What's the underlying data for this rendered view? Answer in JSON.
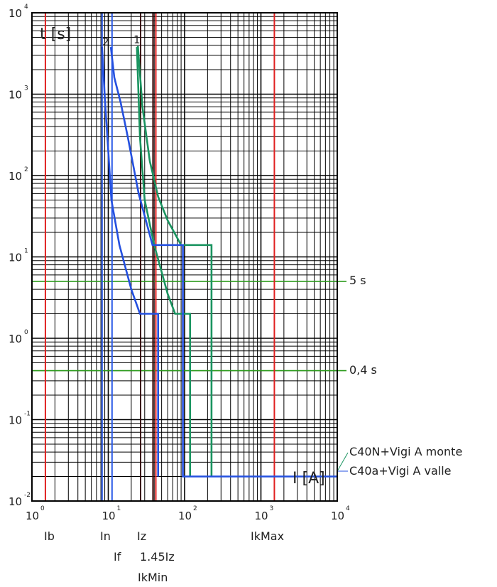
{
  "chart_data": {
    "type": "line",
    "title": "",
    "xlabel": "I [A]",
    "ylabel": "t [s]",
    "xscale": "log",
    "yscale": "log",
    "xlim": [
      1,
      10000
    ],
    "ylim": [
      0.01,
      10000
    ],
    "x_ticks": [
      {
        "base": "10",
        "exp": "0"
      },
      {
        "base": "10",
        "exp": "1"
      },
      {
        "base": "10",
        "exp": "2"
      },
      {
        "base": "10",
        "exp": "3"
      },
      {
        "base": "10",
        "exp": "4"
      }
    ],
    "y_ticks": [
      {
        "base": "10",
        "exp": "-2"
      },
      {
        "base": "10",
        "exp": "-1"
      },
      {
        "base": "10",
        "exp": "0"
      },
      {
        "base": "10",
        "exp": "1"
      },
      {
        "base": "10",
        "exp": "2"
      },
      {
        "base": "10",
        "exp": "3"
      },
      {
        "base": "10",
        "exp": "4"
      }
    ],
    "grid": true,
    "colors": {
      "curve1": "#1a9460",
      "curve2": "#2450e0",
      "red_line": "#e02020",
      "dark_line": "#3a0808",
      "green_line": "#2a9a1a",
      "blue_line": "#2a5ae8",
      "grid": "#000000"
    },
    "series": [
      {
        "id": "curve1",
        "label": "1",
        "color": "#1a9460",
        "points": [
          {
            "x": 23.7,
            "y": 3800
          },
          {
            "x": 24.5,
            "y": 3800
          },
          {
            "x": 28,
            "y": 700
          },
          {
            "x": 35,
            "y": 150
          },
          {
            "x": 45,
            "y": 55
          },
          {
            "x": 60,
            "y": 28
          },
          {
            "x": 90,
            "y": 14
          },
          {
            "x": 225,
            "y": 14
          },
          {
            "x": 225,
            "y": 0.02
          }
        ]
      },
      {
        "id": "curve1-inner",
        "color": "#1a9460",
        "points": [
          {
            "x": 23.7,
            "y": 3800
          },
          {
            "x": 26,
            "y": 300
          },
          {
            "x": 30,
            "y": 50
          },
          {
            "x": 40,
            "y": 14
          },
          {
            "x": 60,
            "y": 3.5
          },
          {
            "x": 75,
            "y": 2
          },
          {
            "x": 118,
            "y": 2
          },
          {
            "x": 118,
            "y": 0.02
          }
        ]
      },
      {
        "id": "curve2",
        "label": "2",
        "color": "#2450e0",
        "points": [
          {
            "x": 8.3,
            "y": 3800
          },
          {
            "x": 9,
            "y": 900
          },
          {
            "x": 10,
            "y": 200
          },
          {
            "x": 11,
            "y": 50
          },
          {
            "x": 14,
            "y": 14
          },
          {
            "x": 20,
            "y": 4
          },
          {
            "x": 26,
            "y": 2
          },
          {
            "x": 45,
            "y": 2
          },
          {
            "x": 45,
            "y": 0.02
          }
        ]
      },
      {
        "id": "curve2-outer",
        "color": "#2450e0",
        "points": [
          {
            "x": 10.8,
            "y": 3800
          },
          {
            "x": 12,
            "y": 1600
          },
          {
            "x": 14.5,
            "y": 800
          },
          {
            "x": 18,
            "y": 300
          },
          {
            "x": 25,
            "y": 60
          },
          {
            "x": 38,
            "y": 14
          },
          {
            "x": 95,
            "y": 14
          },
          {
            "x": 95,
            "y": 0.02
          },
          {
            "x": 10000,
            "y": 0.02
          }
        ]
      }
    ],
    "vertical_lines": [
      {
        "x": 1.5,
        "color": "#e02020",
        "label": "Ib"
      },
      {
        "x": 8.3,
        "color": "#2a5ae8",
        "label": "In"
      },
      {
        "x": 11.2,
        "color": "#2a5ae8",
        "label": "If"
      },
      {
        "x": 26.5,
        "color": "#3a0808",
        "label": "Iz"
      },
      {
        "x": 38.5,
        "color": "#3a0808",
        "label": "1.45Iz"
      },
      {
        "x": 42,
        "color": "#e02020",
        "label": "IkMin"
      },
      {
        "x": 1500,
        "color": "#e02020",
        "label": "IkMax"
      }
    ],
    "horizontal_lines": [
      {
        "y": 5,
        "color": "#2a9a1a",
        "label": "5 s"
      },
      {
        "y": 0.4,
        "color": "#2a9a1a",
        "label": "0,4 s"
      }
    ],
    "legend": [
      {
        "text": "C40N+Vigi A monte",
        "color": "#1a9460"
      },
      {
        "text": "C40a+Vigi A valle",
        "color": "#2450e0"
      }
    ],
    "current_labels": {
      "row1": [
        "Ib",
        "In",
        "Iz",
        "IkMax"
      ],
      "row2": [
        "If",
        "1.45Iz"
      ],
      "row3": [
        "IkMin"
      ]
    }
  }
}
